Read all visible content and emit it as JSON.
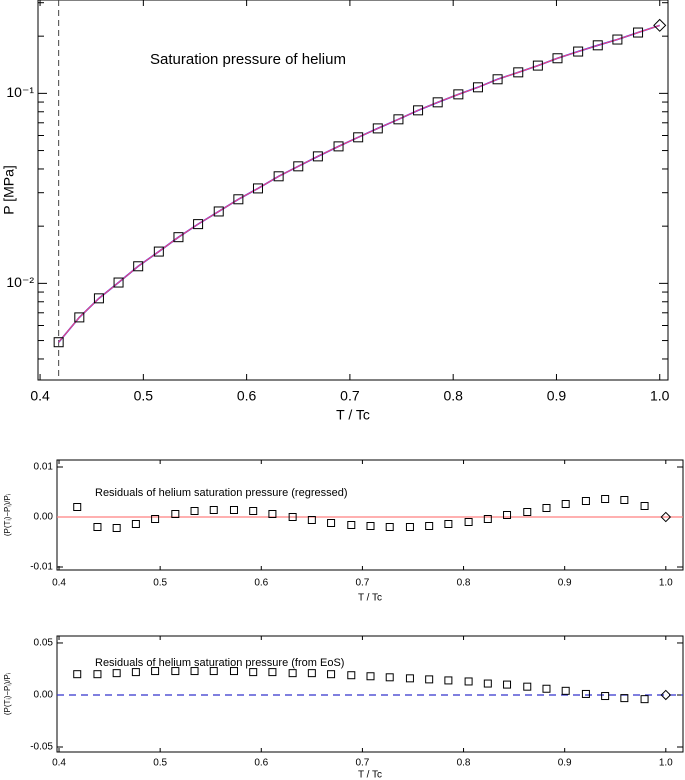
{
  "chart_data": [
    {
      "type": "line",
      "title": "Saturation pressure of helium",
      "xlabel": "T / Tc",
      "ylabel": "P [MPa]",
      "yscale": "log",
      "x": [
        0.418,
        0.438,
        0.457,
        0.476,
        0.495,
        0.515,
        0.534,
        0.553,
        0.573,
        0.592,
        0.611,
        0.631,
        0.65,
        0.669,
        0.689,
        0.708,
        0.727,
        0.747,
        0.766,
        0.785,
        0.805,
        0.824,
        0.843,
        0.863,
        0.882,
        0.901,
        0.921,
        0.94,
        0.959,
        0.979
      ],
      "values": [
        0.0049,
        0.00662,
        0.00834,
        0.0101,
        0.0123,
        0.0147,
        0.0175,
        0.0205,
        0.0239,
        0.0277,
        0.0316,
        0.0366,
        0.0413,
        0.0466,
        0.0526,
        0.0587,
        0.0654,
        0.073,
        0.0814,
        0.0897,
        0.0988,
        0.1076,
        0.1186,
        0.129,
        0.14,
        0.153,
        0.166,
        0.179,
        0.192,
        0.209
      ],
      "marker": "square",
      "color": "#000000",
      "line_colors": [
        "#1a1aff",
        "#ff4d6d"
      ],
      "critical_point": {
        "x": 1.0,
        "value": 0.228
      },
      "vline_x": 0.418,
      "xlim": [
        0.398,
        1.008
      ],
      "ylim": [
        0.0031,
        0.31
      ],
      "xticks": [
        0.4,
        0.5,
        0.6,
        0.7,
        0.8,
        0.9,
        {
          "value": 1.0,
          "label": "1.0"
        }
      ],
      "yticks": [
        {
          "value": 0.01,
          "label": "10⁻²"
        },
        {
          "value": 0.1,
          "label": "10⁻¹"
        }
      ],
      "minor_yticks": [
        0.004,
        0.005,
        0.006,
        0.007,
        0.008,
        0.009,
        0.02,
        0.03,
        0.04,
        0.05,
        0.06,
        0.07,
        0.08,
        0.09,
        0.2,
        0.3
      ]
    },
    {
      "type": "scatter",
      "title": "Residuals of helium saturation pressure (regressed)",
      "xlabel": "T / Tc",
      "ylabel": "(P(Tᵢ)−Pᵢ)/Pᵢ",
      "x": [
        0.418,
        0.438,
        0.457,
        0.476,
        0.495,
        0.515,
        0.534,
        0.553,
        0.573,
        0.592,
        0.611,
        0.631,
        0.65,
        0.669,
        0.689,
        0.708,
        0.727,
        0.747,
        0.766,
        0.785,
        0.805,
        0.824,
        0.843,
        0.863,
        0.882,
        0.901,
        0.921,
        0.94,
        0.959,
        0.979
      ],
      "values": [
        0.002,
        -0.002,
        -0.0022,
        -0.0014,
        -0.0004,
        0.0006,
        0.0012,
        0.0014,
        0.0014,
        0.0012,
        0.0006,
        0.0,
        -0.0006,
        -0.0012,
        -0.0016,
        -0.0018,
        -0.002,
        -0.002,
        -0.0018,
        -0.0014,
        -0.001,
        -0.0004,
        0.0004,
        0.001,
        0.0018,
        0.0026,
        0.0032,
        0.0036,
        0.0034,
        0.0022
      ],
      "marker": "square",
      "color": "#000000",
      "critical_point": {
        "x": 1.0,
        "value": 0
      },
      "hline": {
        "value": 0,
        "color": "#ff8080",
        "dashed": false
      },
      "xlim": [
        0.398,
        1.017
      ],
      "ylim": [
        -0.0106,
        0.0114
      ],
      "xticks": [
        0.4,
        0.5,
        0.6,
        0.7,
        0.8,
        0.9,
        {
          "value": 1.0,
          "label": "1.0"
        }
      ],
      "yticks": [
        -0.01,
        {
          "value": 0,
          "label": "0.00"
        },
        0.01
      ]
    },
    {
      "type": "scatter",
      "title": "Residuals of helium saturation pressure (from EoS)",
      "xlabel": "T / Tc",
      "ylabel": "(P(Tᵢ)−Pᵢ)/Pᵢ",
      "x": [
        0.418,
        0.438,
        0.457,
        0.476,
        0.495,
        0.515,
        0.534,
        0.553,
        0.573,
        0.592,
        0.611,
        0.631,
        0.65,
        0.669,
        0.689,
        0.708,
        0.727,
        0.747,
        0.766,
        0.785,
        0.805,
        0.824,
        0.843,
        0.863,
        0.882,
        0.901,
        0.921,
        0.94,
        0.959,
        0.979
      ],
      "values": [
        0.02,
        0.02,
        0.021,
        0.022,
        0.023,
        0.023,
        0.023,
        0.023,
        0.023,
        0.022,
        0.022,
        0.021,
        0.021,
        0.02,
        0.019,
        0.018,
        0.017,
        0.016,
        0.015,
        0.014,
        0.013,
        0.011,
        0.01,
        0.008,
        0.006,
        0.004,
        0.001,
        -0.001,
        -0.003,
        -0.004
      ],
      "marker": "square",
      "color": "#000000",
      "critical_point": {
        "x": 1.0,
        "value": 0
      },
      "hline": {
        "value": 0,
        "color": "#3333cc",
        "dashed": true
      },
      "xlim": [
        0.398,
        1.017
      ],
      "ylim": [
        -0.0548,
        0.0567
      ],
      "xticks": [
        0.4,
        0.5,
        0.6,
        0.7,
        0.8,
        0.9,
        {
          "value": 1.0,
          "label": "1.0"
        }
      ],
      "yticks": [
        -0.05,
        {
          "value": 0,
          "label": "0.00"
        },
        0.05
      ]
    }
  ]
}
